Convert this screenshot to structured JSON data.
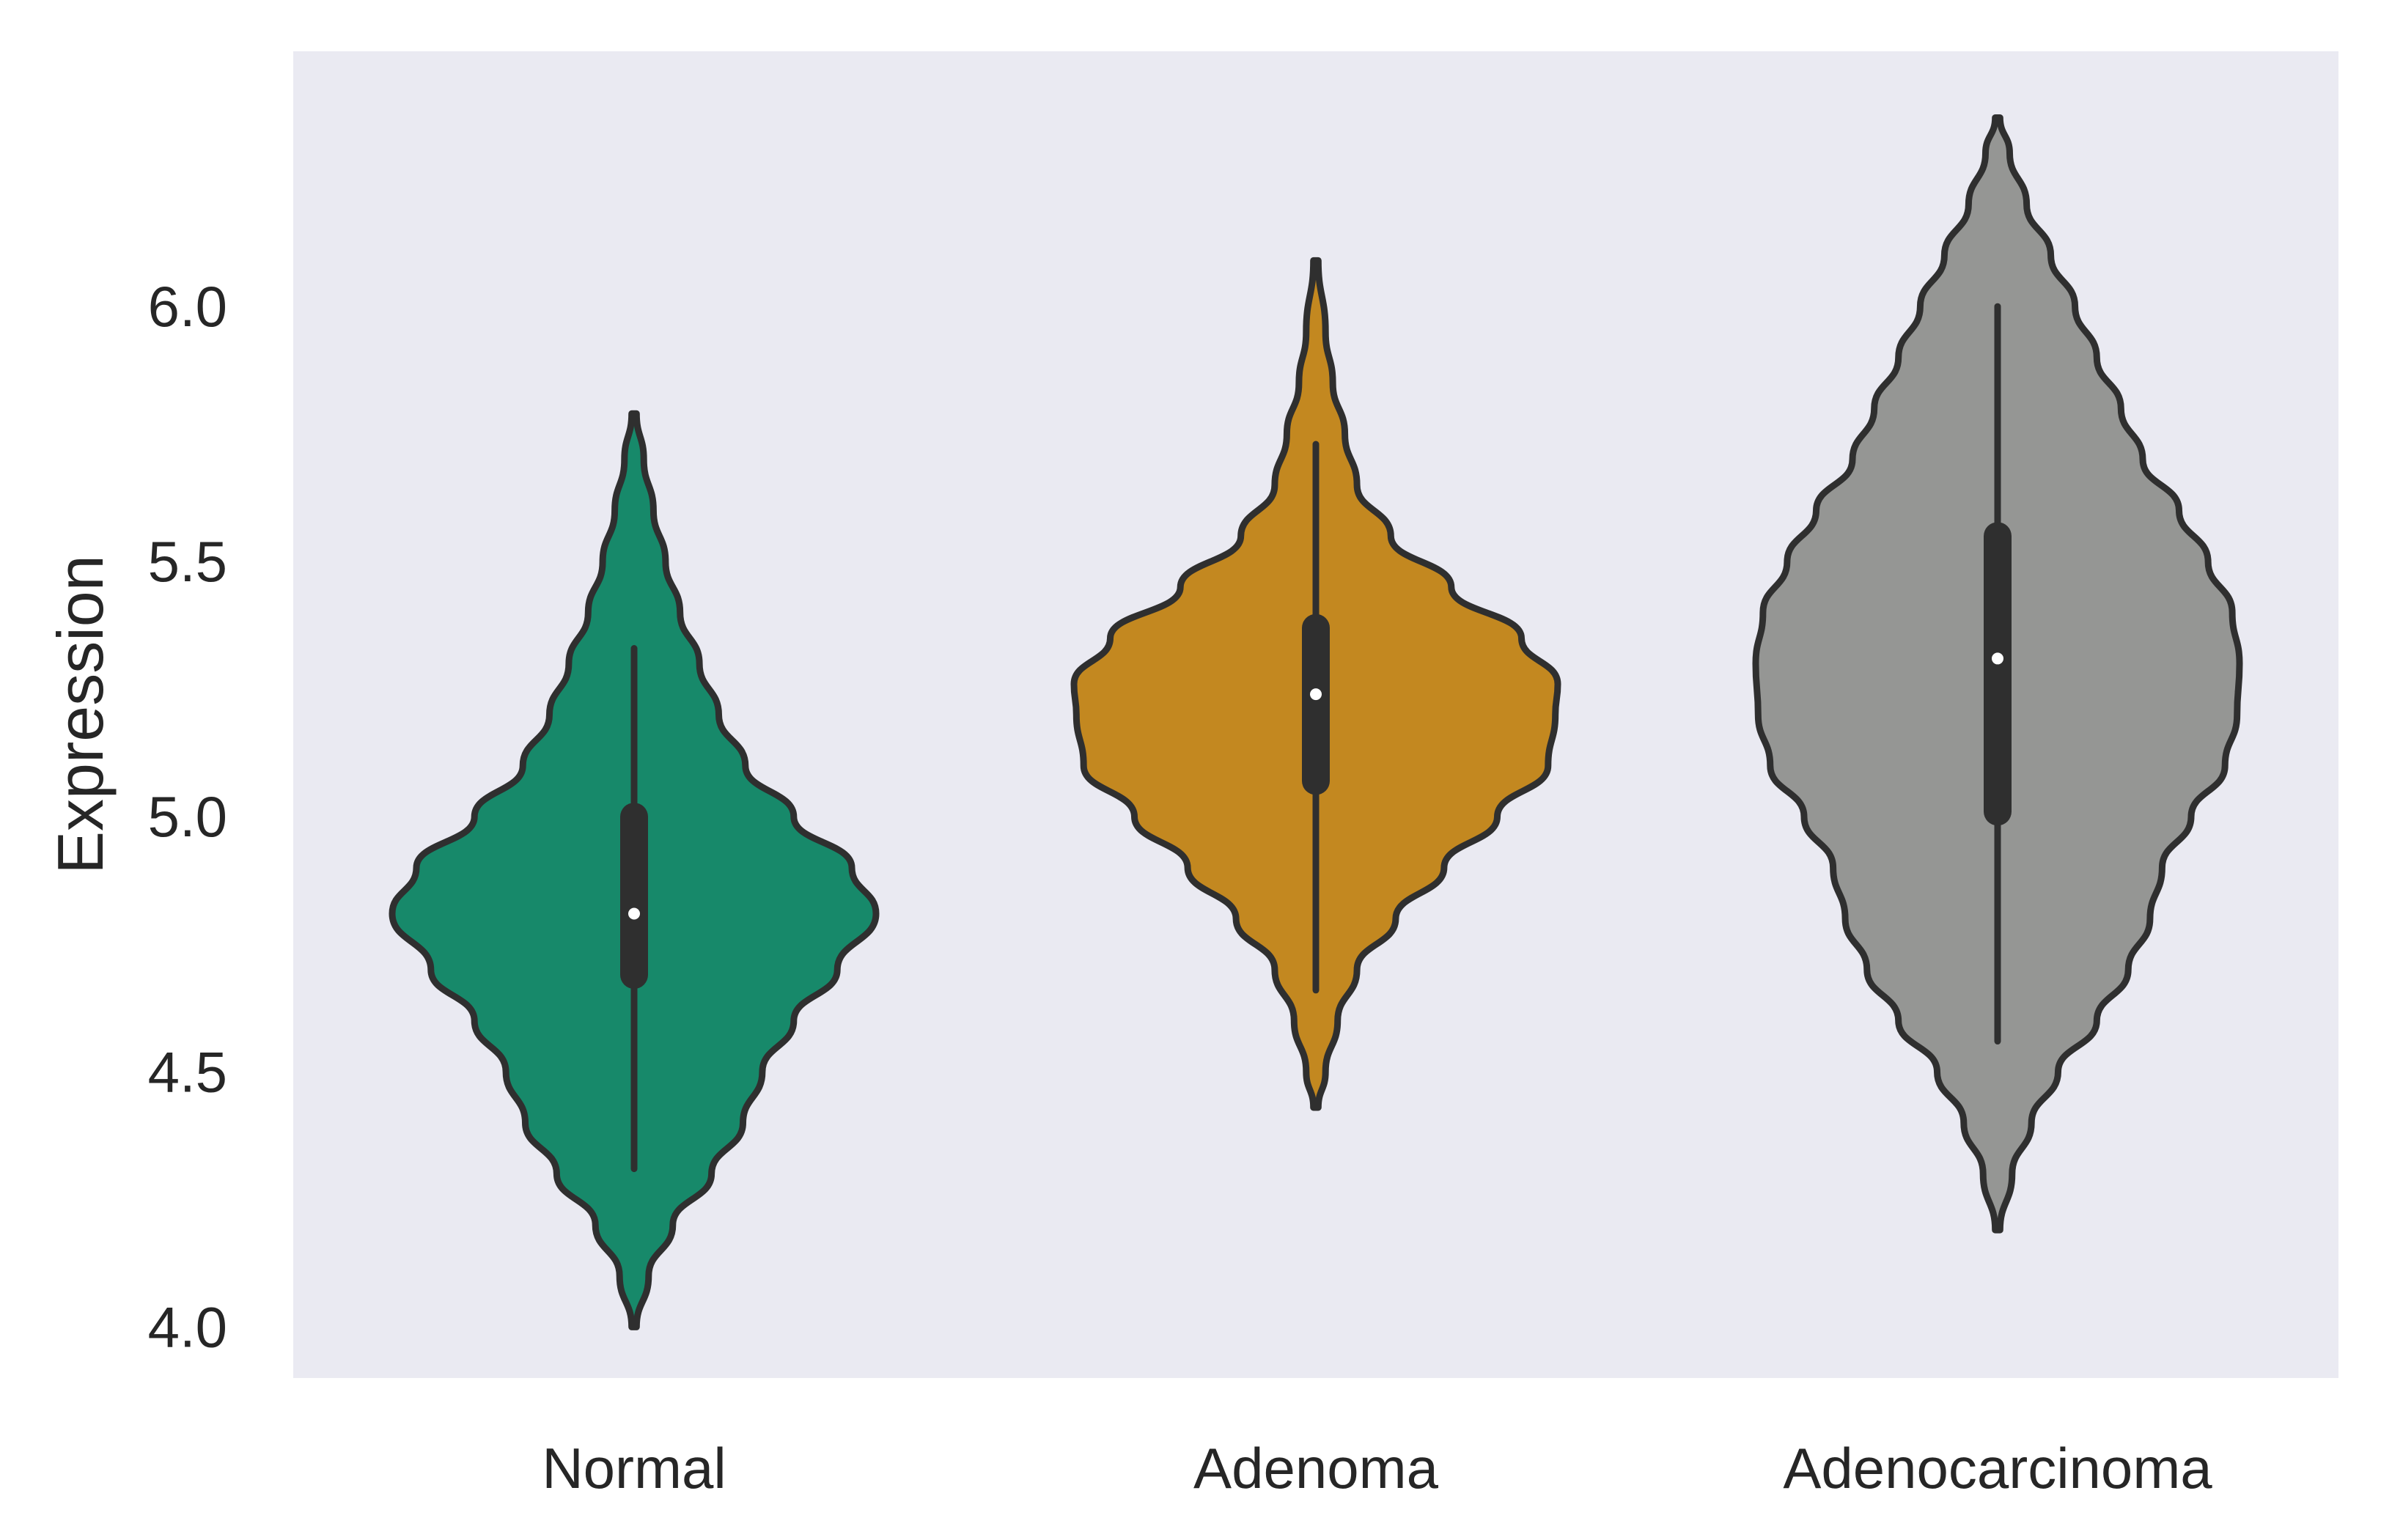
{
  "chart_data": {
    "type": "violin",
    "title": "",
    "xlabel": "",
    "ylabel": "Expression",
    "ylim": [
      3.9,
      6.5
    ],
    "yticks": [
      4.0,
      4.5,
      5.0,
      5.5,
      6.0
    ],
    "ytick_labels": [
      "4.0",
      "4.5",
      "5.0",
      "5.5",
      "6.0"
    ],
    "grid": false,
    "legend": "none",
    "background_color": "#EAEAF2",
    "outline_color": "#2F2F2F",
    "categories": [
      "Normal",
      "Adenoma",
      "Adenocarcinoma"
    ],
    "series": [
      {
        "category": "Normal",
        "color": "#17896A",
        "min": 4.0,
        "max": 5.79,
        "whisker_low": 4.31,
        "whisker_high": 5.33,
        "q1": 4.69,
        "q3": 5.0,
        "median": 4.81,
        "density_profile": [
          [
            4.0,
            0.01
          ],
          [
            4.1,
            0.06
          ],
          [
            4.2,
            0.16
          ],
          [
            4.3,
            0.32
          ],
          [
            4.4,
            0.45
          ],
          [
            4.5,
            0.53
          ],
          [
            4.6,
            0.66
          ],
          [
            4.7,
            0.84
          ],
          [
            4.81,
            1.0
          ],
          [
            4.9,
            0.9
          ],
          [
            5.0,
            0.66
          ],
          [
            5.1,
            0.46
          ],
          [
            5.2,
            0.35
          ],
          [
            5.3,
            0.27
          ],
          [
            5.4,
            0.19
          ],
          [
            5.5,
            0.13
          ],
          [
            5.6,
            0.08
          ],
          [
            5.7,
            0.04
          ],
          [
            5.79,
            0.01
          ]
        ]
      },
      {
        "category": "Adenoma",
        "color": "#C38820",
        "min": 4.43,
        "max": 6.09,
        "whisker_low": 4.66,
        "whisker_high": 5.73,
        "q1": 5.07,
        "q3": 5.37,
        "median": 5.24,
        "density_profile": [
          [
            4.43,
            0.01
          ],
          [
            4.5,
            0.04
          ],
          [
            4.6,
            0.09
          ],
          [
            4.7,
            0.17
          ],
          [
            4.8,
            0.33
          ],
          [
            4.9,
            0.53
          ],
          [
            5.0,
            0.75
          ],
          [
            5.1,
            0.96
          ],
          [
            5.2,
            0.99
          ],
          [
            5.26,
            1.0
          ],
          [
            5.35,
            0.85
          ],
          [
            5.45,
            0.56
          ],
          [
            5.55,
            0.31
          ],
          [
            5.65,
            0.17
          ],
          [
            5.75,
            0.12
          ],
          [
            5.85,
            0.07
          ],
          [
            5.95,
            0.04
          ],
          [
            6.09,
            0.01
          ]
        ]
      },
      {
        "category": "Adenocarcinoma",
        "color": "#959694",
        "min": 4.19,
        "max": 6.37,
        "whisker_low": 4.56,
        "whisker_high": 6.0,
        "q1": 5.01,
        "q3": 5.55,
        "median": 5.31,
        "density_profile": [
          [
            4.19,
            0.01
          ],
          [
            4.3,
            0.06
          ],
          [
            4.4,
            0.14
          ],
          [
            4.5,
            0.25
          ],
          [
            4.6,
            0.41
          ],
          [
            4.7,
            0.54
          ],
          [
            4.8,
            0.63
          ],
          [
            4.9,
            0.68
          ],
          [
            5.0,
            0.8
          ],
          [
            5.1,
            0.94
          ],
          [
            5.2,
            0.99
          ],
          [
            5.3,
            1.0
          ],
          [
            5.4,
            0.97
          ],
          [
            5.5,
            0.87
          ],
          [
            5.6,
            0.75
          ],
          [
            5.7,
            0.6
          ],
          [
            5.8,
            0.51
          ],
          [
            5.9,
            0.41
          ],
          [
            6.0,
            0.32
          ],
          [
            6.1,
            0.22
          ],
          [
            6.2,
            0.12
          ],
          [
            6.3,
            0.05
          ],
          [
            6.37,
            0.01
          ]
        ]
      }
    ]
  }
}
